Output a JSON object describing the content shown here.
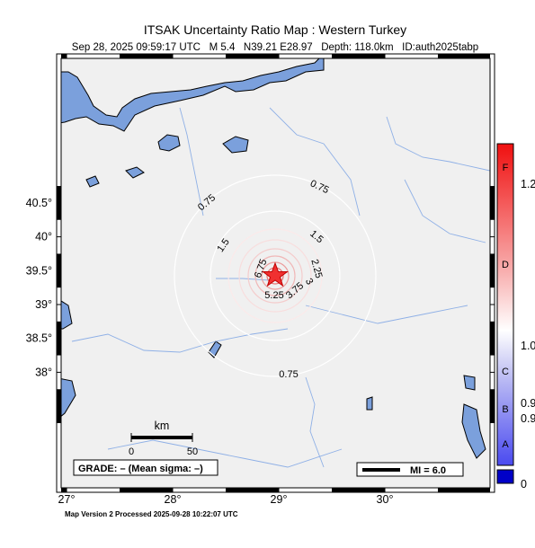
{
  "header": {
    "title": "ITSAK Uncertainty Ratio Map : Western Turkey",
    "subtitle": "Sep 28, 2025 09:59:17 UTC   M 5.4   N39.21 E28.97   Depth: 118.0km   ID:auth2025tabp"
  },
  "map": {
    "lat_ticks": [
      {
        "value": 40.5,
        "label": "40.5°"
      },
      {
        "value": 40,
        "label": "40°"
      },
      {
        "value": 39.5,
        "label": "39.5°"
      },
      {
        "value": 39,
        "label": "39°"
      },
      {
        "value": 38.5,
        "label": "38.5°"
      },
      {
        "value": 38,
        "label": "38°"
      }
    ],
    "lon_ticks": [
      {
        "value": 27,
        "label": "27°"
      },
      {
        "value": 28,
        "label": "28°"
      },
      {
        "value": 29,
        "label": "29°"
      },
      {
        "value": 30,
        "label": "30°"
      }
    ],
    "contour_labels": [
      "0.75",
      "0.75",
      "0.75",
      "1.5",
      "1.5",
      "2.25",
      "3.75",
      "5.25",
      "6.75",
      "3"
    ],
    "scale_bar": {
      "unit": "km",
      "start": "0",
      "end": "50"
    },
    "grade": "GRADE: – (Mean sigma: –)",
    "mi_legend": "MI = 6.0"
  },
  "colorbar": {
    "grades": [
      "F",
      "D",
      "C",
      "B",
      "A"
    ],
    "values": [
      "1.2",
      "1.0",
      "0.9",
      "0.9",
      "0"
    ]
  },
  "footer": "Map Version 2 Processed 2025-09-28 10:22:07 UTC"
}
